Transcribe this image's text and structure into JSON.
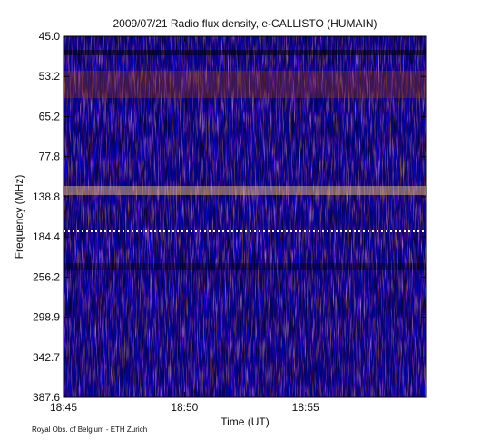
{
  "chart_data": {
    "type": "spectrogram",
    "title": "2009/07/21  Radio flux density, e-CALLISTO (HUMAIN)",
    "y_label": "Frequency (MHz)",
    "x_label": "Time (UT)",
    "y_tick_labels": [
      "45.0",
      "53.2",
      "65.2",
      "77.8",
      "138.8",
      "184.4",
      "256.2",
      "298.9",
      "342.7",
      "387.6"
    ],
    "x_tick_labels": [
      "18:45",
      "18:50",
      "18:55"
    ],
    "credit": "Royal Obs. of Belgium - ETH Zurich"
  }
}
